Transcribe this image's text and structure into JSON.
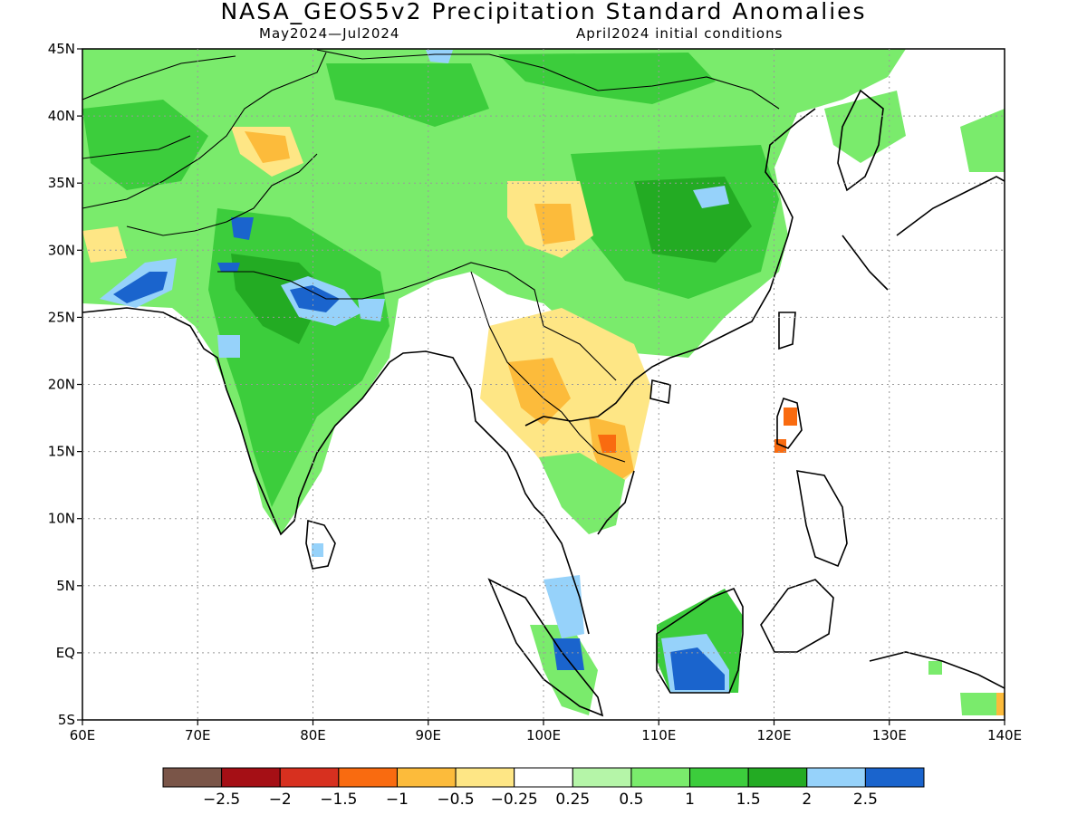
{
  "header": {
    "title": "NASA_GEOS5v2 Precipitation Standard Anomalies",
    "period": "May2024—Jul2024",
    "initial_conditions": "April2024 initial conditions"
  },
  "map": {
    "lat_labels": [
      "45N",
      "40N",
      "35N",
      "30N",
      "25N",
      "20N",
      "15N",
      "10N",
      "5N",
      "EQ",
      "5S"
    ],
    "lon_labels": [
      "60E",
      "70E",
      "80E",
      "90E",
      "100E",
      "110E",
      "120E",
      "130E",
      "140E"
    ],
    "lon_range": [
      60,
      140
    ],
    "lat_range": [
      -5,
      45
    ]
  },
  "colorbar": {
    "colors": [
      "#7a5548",
      "#a50f15",
      "#d7301f",
      "#f96b10",
      "#fcbb3b",
      "#fee685",
      "#ffffff",
      "#b5f5a8",
      "#7aeb6c",
      "#3ccd3c",
      "#23ab23",
      "#96d2fa",
      "#1a64cd"
    ],
    "labels": [
      "−2.5",
      "−2",
      "−1.5",
      "−1",
      "−0.5",
      "−0.25",
      "0.25",
      "0.5",
      "1",
      "1.5",
      "2",
      "2.5"
    ]
  }
}
